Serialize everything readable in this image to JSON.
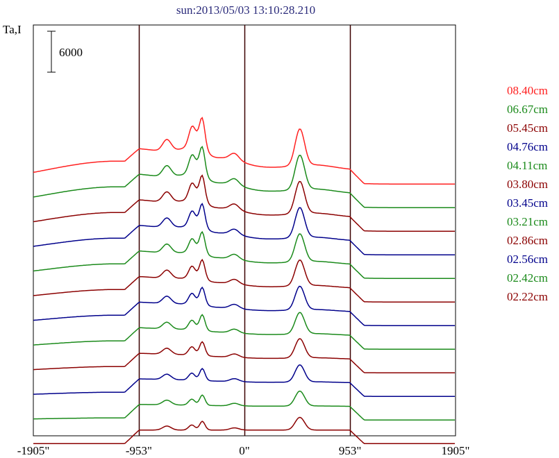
{
  "chart_data": {
    "type": "line",
    "title": "sun:2013/05/03 13:10:28.210",
    "ylabel": "Ta,I",
    "scale_bar_label": "6000",
    "scale_bar_value": 6000,
    "xlim": [
      -1905,
      1905
    ],
    "x_ticks": [
      {
        "value": -1905,
        "label": "-1905\""
      },
      {
        "value": -953,
        "label": "-953\""
      },
      {
        "value": 0,
        "label": "0\""
      },
      {
        "value": 953,
        "label": "953\""
      },
      {
        "value": 1905,
        "label": "1905\""
      }
    ],
    "vertical_lines": [
      -953,
      0,
      953
    ],
    "grid": false,
    "legend_position": "right",
    "series": [
      {
        "name": "08.40cm",
        "color": "#ff2020"
      },
      {
        "name": "06.67cm",
        "color": "#1a8a1a"
      },
      {
        "name": "05.45cm",
        "color": "#8b0000"
      },
      {
        "name": "04.76cm",
        "color": "#00008b"
      },
      {
        "name": "04.11cm",
        "color": "#1a8a1a"
      },
      {
        "name": "03.80cm",
        "color": "#8b0000"
      },
      {
        "name": "03.45cm",
        "color": "#00008b"
      },
      {
        "name": "03.21cm",
        "color": "#1a8a1a"
      },
      {
        "name": "02.86cm",
        "color": "#8b0000"
      },
      {
        "name": "02.56cm",
        "color": "#00008b"
      },
      {
        "name": "02.42cm",
        "color": "#1a8a1a"
      },
      {
        "name": "02.22cm",
        "color": "#8b0000"
      }
    ]
  }
}
